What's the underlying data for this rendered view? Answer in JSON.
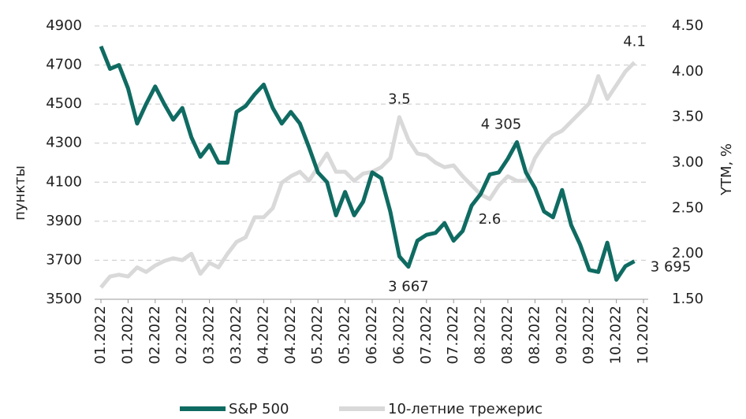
{
  "chart_data": {
    "type": "line",
    "ylabel": "пункты",
    "y2label": "YTM, %",
    "categories": [
      "01.2022",
      null,
      null,
      "01.2022",
      null,
      null,
      "02.2022",
      null,
      null,
      "02.2022",
      null,
      null,
      "03.2022",
      null,
      null,
      "03.2022",
      null,
      null,
      "04.2022",
      null,
      null,
      "04.2022",
      null,
      null,
      "05.2022",
      null,
      null,
      "05.2022",
      null,
      null,
      "06.2022",
      null,
      null,
      "06.2022",
      null,
      null,
      "07.2022",
      null,
      null,
      "07.2022",
      null,
      null,
      "08.2022",
      null,
      null,
      "08.2022",
      null,
      null,
      "08.2022",
      null,
      null,
      "09.2022",
      null,
      null,
      "09.2022",
      null,
      null,
      "10.2022",
      null,
      null,
      "10.2022"
    ],
    "series": [
      {
        "name": "10-летние трежерис",
        "color": "#d9d9d9",
        "axis": "y2",
        "values": [
          1.63,
          1.75,
          1.77,
          1.75,
          1.85,
          1.8,
          1.87,
          1.92,
          1.95,
          1.93,
          2.0,
          1.78,
          1.9,
          1.85,
          2.0,
          2.13,
          2.18,
          2.4,
          2.4,
          2.5,
          2.78,
          2.85,
          2.9,
          2.8,
          2.95,
          3.1,
          2.9,
          2.9,
          2.8,
          2.88,
          2.9,
          2.95,
          3.05,
          3.5,
          3.25,
          3.1,
          3.08,
          3.0,
          2.95,
          2.97,
          2.85,
          2.75,
          2.65,
          2.6,
          2.75,
          2.85,
          2.8,
          2.8,
          3.05,
          3.2,
          3.3,
          3.35,
          3.45,
          3.55,
          3.65,
          3.95,
          3.7,
          3.85,
          4.0,
          4.1,
          null
        ],
        "value_labels": [
          null,
          null,
          null,
          null,
          null,
          null,
          null,
          null,
          null,
          null,
          null,
          null,
          null,
          null,
          null,
          null,
          null,
          null,
          null,
          null,
          null,
          null,
          null,
          null,
          null,
          null,
          null,
          null,
          null,
          null,
          null,
          null,
          null,
          "3.5",
          null,
          null,
          null,
          null,
          null,
          null,
          null,
          null,
          null,
          "2.6",
          null,
          null,
          null,
          null,
          null,
          null,
          null,
          null,
          null,
          null,
          null,
          null,
          null,
          null,
          null,
          "4.1",
          null
        ]
      },
      {
        "name": "S&P 500",
        "color": "#0f6b62",
        "values": [
          4796,
          4680,
          4700,
          4580,
          4400,
          4500,
          4590,
          4500,
          4420,
          4480,
          4330,
          4230,
          4290,
          4200,
          4200,
          4460,
          4490,
          4550,
          4600,
          4480,
          4400,
          4460,
          4400,
          4280,
          4150,
          4100,
          3930,
          4050,
          3930,
          4000,
          4150,
          4120,
          3950,
          3720,
          3667,
          3800,
          3830,
          3840,
          3890,
          3800,
          3850,
          3980,
          4040,
          4140,
          4150,
          4220,
          4305,
          4150,
          4070,
          3950,
          3920,
          4060,
          3880,
          3780,
          3650,
          3640,
          3790,
          3600,
          3670,
          3695,
          null
        ],
        "value_labels": [
          null,
          null,
          null,
          null,
          null,
          null,
          null,
          null,
          null,
          null,
          null,
          null,
          null,
          null,
          null,
          null,
          null,
          null,
          null,
          null,
          null,
          null,
          null,
          null,
          null,
          null,
          null,
          null,
          null,
          null,
          null,
          null,
          null,
          null,
          "3 667",
          null,
          null,
          null,
          null,
          null,
          null,
          null,
          null,
          null,
          null,
          null,
          "4 305",
          null,
          null,
          null,
          null,
          null,
          null,
          null,
          null,
          null,
          null,
          null,
          null,
          "3 695",
          null
        ]
      }
    ],
    "ylim": [
      3500,
      4900
    ],
    "yticks": [
      3500,
      3700,
      3900,
      4100,
      4300,
      4500,
      4700,
      4900
    ],
    "y2lim": [
      1.5,
      4.5
    ],
    "y2ticks": [
      {
        "value": 1.5,
        "label": "1.50"
      },
      {
        "value": 2.0,
        "label": "2.00"
      },
      {
        "value": 2.5,
        "label": "2.50"
      },
      {
        "value": 3.0,
        "label": "3.00"
      },
      {
        "value": 3.5,
        "label": "3.50"
      },
      {
        "value": 4.0,
        "label": "4.00"
      },
      {
        "value": 4.5,
        "label": "4.50"
      }
    ],
    "grid": true,
    "legend": "bottom"
  }
}
